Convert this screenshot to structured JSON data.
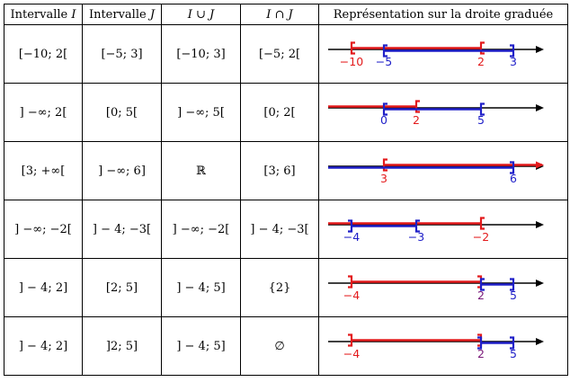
{
  "headers": {
    "i_prefix": "Intervalle ",
    "i_var": "I",
    "j_prefix": "Intervalle ",
    "j_var": "J",
    "union_a": "I",
    "union_op": " ∪ ",
    "union_b": "J",
    "inter_a": "I",
    "inter_op": " ∩ ",
    "inter_b": "J",
    "representation": "Représentation sur la droite graduée"
  },
  "colors": {
    "I": "#e31a1c",
    "J": "#1f1fc8",
    "axis": "#000000",
    "shared": "#7a1a7a"
  },
  "rows": [
    {
      "I": "[−10; 2[",
      "J": "[−5; 3]",
      "union": "[−10; 3]",
      "inter": "[−5; 2[",
      "number_line": {
        "ticks": [
          {
            "label": "−10",
            "set": "I"
          },
          {
            "label": "−5",
            "set": "J"
          },
          {
            "label": "2",
            "set": "I"
          },
          {
            "label": "3",
            "set": "J"
          }
        ],
        "intervals": [
          {
            "set": "I",
            "from": "−10",
            "to": "2",
            "left": "[",
            "right": "["
          },
          {
            "set": "J",
            "from": "−5",
            "to": "3",
            "left": "[",
            "right": "]"
          }
        ]
      }
    },
    {
      "I": "] −∞; 2[",
      "J": "[0; 5[",
      "union": "] −∞; 5[",
      "inter": "[0; 2[",
      "number_line": {
        "ticks": [
          {
            "label": "0",
            "set": "J"
          },
          {
            "label": "2",
            "set": "I"
          },
          {
            "label": "5",
            "set": "J"
          }
        ],
        "intervals": [
          {
            "set": "I",
            "from": "−∞",
            "to": "2",
            "left": "",
            "right": "["
          },
          {
            "set": "J",
            "from": "0",
            "to": "5",
            "left": "[",
            "right": "["
          }
        ]
      }
    },
    {
      "I": "[3; +∞[",
      "J": "] −∞; 6]",
      "union": "ℝ",
      "inter": "[3; 6]",
      "number_line": {
        "ticks": [
          {
            "label": "3",
            "set": "I"
          },
          {
            "label": "6",
            "set": "J"
          }
        ],
        "intervals": [
          {
            "set": "I",
            "from": "3",
            "to": "+∞",
            "left": "[",
            "right": ""
          },
          {
            "set": "J",
            "from": "−∞",
            "to": "6",
            "left": "",
            "right": "]"
          }
        ]
      }
    },
    {
      "I": "] −∞; −2[",
      "J": "] − 4; −3[",
      "union": "] −∞; −2[",
      "inter": "] − 4; −3[",
      "number_line": {
        "ticks": [
          {
            "label": "−4",
            "set": "J"
          },
          {
            "label": "−3",
            "set": "J"
          },
          {
            "label": "−2",
            "set": "I"
          }
        ],
        "intervals": [
          {
            "set": "I",
            "from": "−∞",
            "to": "−2",
            "left": "",
            "right": "["
          },
          {
            "set": "J",
            "from": "−4",
            "to": "−3",
            "left": "]",
            "right": "["
          }
        ]
      }
    },
    {
      "I": "] − 4; 2]",
      "J": "[2; 5]",
      "union": "] − 4; 5]",
      "inter": "{2}",
      "number_line": {
        "ticks": [
          {
            "label": "−4",
            "set": "I"
          },
          {
            "label": "2",
            "set": "shared"
          },
          {
            "label": "5",
            "set": "J"
          }
        ],
        "intervals": [
          {
            "set": "I",
            "from": "−4",
            "to": "2",
            "left": "]",
            "right": "]"
          },
          {
            "set": "J",
            "from": "2",
            "to": "5",
            "left": "[",
            "right": "]"
          }
        ]
      }
    },
    {
      "I": "] − 4; 2]",
      "J": "]2; 5]",
      "union": "] − 4; 5]",
      "inter": "∅",
      "number_line": {
        "ticks": [
          {
            "label": "−4",
            "set": "I"
          },
          {
            "label": "2",
            "set": "shared"
          },
          {
            "label": "5",
            "set": "J"
          }
        ],
        "intervals": [
          {
            "set": "I",
            "from": "−4",
            "to": "2",
            "left": "]",
            "right": "]"
          },
          {
            "set": "J",
            "from": "2",
            "to": "5",
            "left": "]",
            "right": "]"
          }
        ]
      }
    }
  ]
}
